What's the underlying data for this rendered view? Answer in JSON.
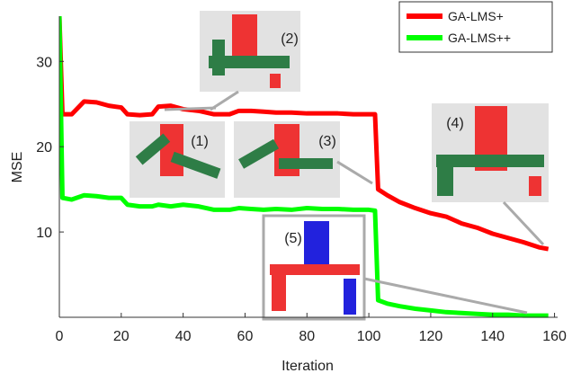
{
  "chart_data": {
    "type": "line",
    "x_label": "Iteration",
    "y_label": "MSE",
    "x": [
      0,
      1,
      4,
      8,
      12,
      16,
      20,
      22,
      26,
      30,
      32,
      36,
      40,
      45,
      50,
      55,
      58,
      62,
      66,
      70,
      75,
      80,
      85,
      90,
      95,
      100,
      102,
      103,
      106,
      110,
      115,
      120,
      125,
      130,
      135,
      140,
      145,
      150,
      155,
      158
    ],
    "series": [
      {
        "name": "GA-LMS+",
        "color": "#ff0000",
        "values": [
          35.5,
          23.8,
          23.8,
          25.3,
          25.2,
          24.8,
          24.6,
          23.8,
          23.7,
          23.8,
          24.7,
          24.8,
          24.4,
          24.2,
          23.8,
          23.8,
          24.2,
          24.2,
          24.1,
          24.0,
          24.0,
          23.9,
          23.9,
          23.9,
          23.8,
          23.8,
          23.8,
          15.0,
          14.3,
          13.5,
          12.8,
          12.2,
          11.8,
          11.0,
          10.5,
          9.8,
          9.3,
          8.8,
          8.2,
          8.0
        ]
      },
      {
        "name": "GA-LMS++",
        "color": "#00ff00",
        "values": [
          35.5,
          14.0,
          13.8,
          14.3,
          14.2,
          14.0,
          14.0,
          13.2,
          13.0,
          13.0,
          13.2,
          13.0,
          13.2,
          13.0,
          12.6,
          12.6,
          12.8,
          12.7,
          12.6,
          12.7,
          12.6,
          12.8,
          12.7,
          12.7,
          12.6,
          12.6,
          12.5,
          2.0,
          1.6,
          1.3,
          1.0,
          0.8,
          0.6,
          0.5,
          0.4,
          0.3,
          0.3,
          0.2,
          0.2,
          0.2
        ]
      }
    ],
    "xlim": [
      0,
      161
    ],
    "xticks": [
      0,
      20,
      40,
      60,
      80,
      100,
      120,
      140,
      160
    ],
    "ylim": [
      0,
      35.3
    ],
    "yticks": [
      10,
      20,
      30
    ],
    "legend": "top-right",
    "annotations": [
      "(1)",
      "(2)",
      "(3)",
      "(4)",
      "(5)"
    ]
  }
}
